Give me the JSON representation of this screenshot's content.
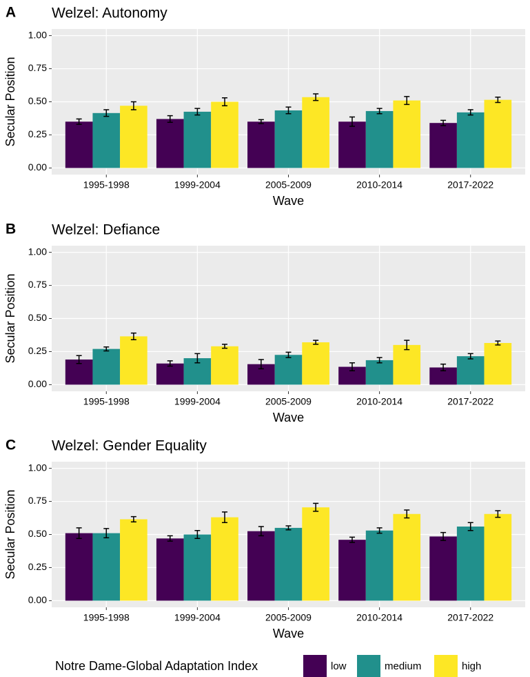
{
  "chart_data": [
    {
      "type": "bar",
      "panel_label": "A",
      "title": "Welzel: Autonomy",
      "x_label": "Wave",
      "y_label": "Secular Position",
      "categories": [
        "1995-1998",
        "1999-2004",
        "2005-2009",
        "2010-2014",
        "2017-2022"
      ],
      "series": [
        {
          "name": "low",
          "color": "#440154",
          "values": [
            0.35,
            0.37,
            0.35,
            0.35,
            0.34
          ],
          "errors": [
            0.02,
            0.025,
            0.015,
            0.035,
            0.02
          ]
        },
        {
          "name": "medium",
          "color": "#21908c",
          "values": [
            0.415,
            0.425,
            0.435,
            0.43,
            0.42
          ],
          "errors": [
            0.025,
            0.025,
            0.025,
            0.02,
            0.02
          ]
        },
        {
          "name": "high",
          "color": "#fde725",
          "values": [
            0.47,
            0.5,
            0.535,
            0.51,
            0.515
          ],
          "errors": [
            0.03,
            0.03,
            0.025,
            0.03,
            0.02
          ]
        }
      ],
      "ylim": [
        -0.05,
        1.05
      ],
      "yticks": [
        {
          "value": 0,
          "label": "0.00"
        },
        {
          "value": 0.25,
          "label": "0.25"
        },
        {
          "value": 0.5,
          "label": "0.50"
        },
        {
          "value": 0.75,
          "label": "0.75"
        },
        {
          "value": 1,
          "label": "1.00"
        }
      ],
      "grid": true
    },
    {
      "type": "bar",
      "panel_label": "B",
      "title": "Welzel: Defiance",
      "x_label": "Wave",
      "y_label": "Secular Position",
      "categories": [
        "1995-1998",
        "1999-2004",
        "2005-2009",
        "2010-2014",
        "2017-2022"
      ],
      "series": [
        {
          "name": "low",
          "color": "#440154",
          "values": [
            0.19,
            0.16,
            0.155,
            0.135,
            0.13
          ],
          "errors": [
            0.03,
            0.02,
            0.035,
            0.03,
            0.025
          ]
        },
        {
          "name": "medium",
          "color": "#21908c",
          "values": [
            0.27,
            0.2,
            0.225,
            0.185,
            0.215
          ],
          "errors": [
            0.015,
            0.035,
            0.02,
            0.02,
            0.02
          ]
        },
        {
          "name": "high",
          "color": "#fde725",
          "values": [
            0.365,
            0.29,
            0.32,
            0.3,
            0.315
          ],
          "errors": [
            0.025,
            0.015,
            0.015,
            0.035,
            0.015
          ]
        }
      ],
      "ylim": [
        -0.05,
        1.05
      ],
      "yticks": [
        {
          "value": 0,
          "label": "0.00"
        },
        {
          "value": 0.25,
          "label": "0.25"
        },
        {
          "value": 0.5,
          "label": "0.50"
        },
        {
          "value": 0.75,
          "label": "0.75"
        },
        {
          "value": 1,
          "label": "1.00"
        }
      ],
      "grid": true
    },
    {
      "type": "bar",
      "panel_label": "C",
      "title": "Welzel: Gender Equality",
      "x_label": "Wave",
      "y_label": "Secular Position",
      "categories": [
        "1995-1998",
        "1999-2004",
        "2005-2009",
        "2010-2014",
        "2017-2022"
      ],
      "series": [
        {
          "name": "low",
          "color": "#440154",
          "values": [
            0.51,
            0.47,
            0.525,
            0.46,
            0.485
          ],
          "errors": [
            0.04,
            0.02,
            0.035,
            0.02,
            0.03
          ]
        },
        {
          "name": "medium",
          "color": "#21908c",
          "values": [
            0.51,
            0.5,
            0.55,
            0.53,
            0.56
          ],
          "errors": [
            0.035,
            0.03,
            0.015,
            0.02,
            0.03
          ]
        },
        {
          "name": "high",
          "color": "#fde725",
          "values": [
            0.615,
            0.63,
            0.705,
            0.655,
            0.655
          ],
          "errors": [
            0.02,
            0.04,
            0.03,
            0.03,
            0.025
          ]
        }
      ],
      "ylim": [
        -0.05,
        1.05
      ],
      "yticks": [
        {
          "value": 0,
          "label": "0.00"
        },
        {
          "value": 0.25,
          "label": "0.25"
        },
        {
          "value": 0.5,
          "label": "0.50"
        },
        {
          "value": 0.75,
          "label": "0.75"
        },
        {
          "value": 1,
          "label": "1.00"
        }
      ],
      "grid": true
    }
  ],
  "legend": {
    "title": "Notre Dame-Global Adaptation Index",
    "position": "bottom"
  }
}
